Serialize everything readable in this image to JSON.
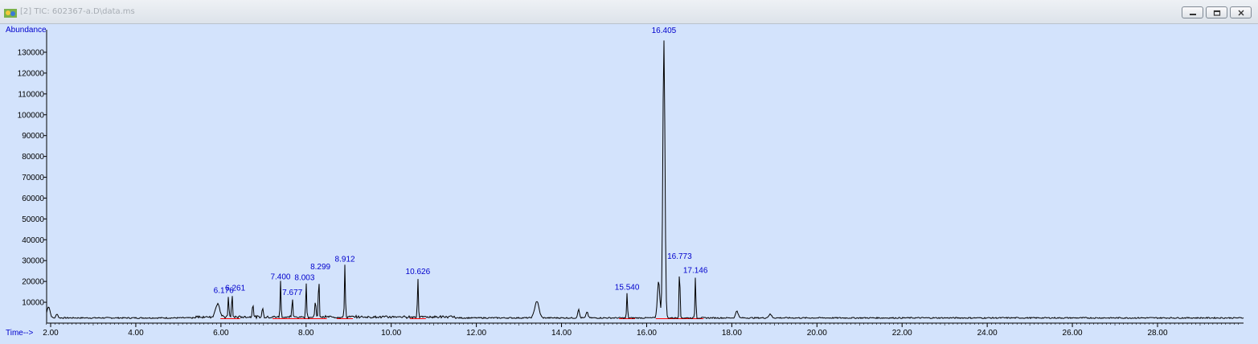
{
  "window": {
    "title": "[2] TIC: 602367-a.D\\data.ms",
    "controls": [
      "minimize",
      "restore",
      "close"
    ]
  },
  "chart_data": {
    "type": "line",
    "ylabel": "Abundance",
    "xlabel": "Time-->",
    "xlim": [
      1.9,
      30.0
    ],
    "ylim": [
      0,
      140000
    ],
    "x_ticks": [
      "2.00",
      "4.00",
      "6.00",
      "8.00",
      "10.00",
      "12.00",
      "14.00",
      "16.00",
      "18.00",
      "20.00",
      "22.00",
      "24.00",
      "26.00",
      "28.00"
    ],
    "y_ticks": [
      "10000",
      "20000",
      "30000",
      "40000",
      "50000",
      "60000",
      "70000",
      "80000",
      "90000",
      "100000",
      "110000",
      "120000",
      "130000"
    ],
    "baseline": 2500,
    "labeled_peaks": [
      {
        "label": "6.176",
        "x": 6.176,
        "y": 13000
      },
      {
        "label": "6.261",
        "x": 6.261,
        "y": 14000
      },
      {
        "label": "7.400",
        "x": 7.4,
        "y": 19500
      },
      {
        "label": "7.677",
        "x": 7.677,
        "y": 12000
      },
      {
        "label": "8.003",
        "x": 8.003,
        "y": 19000
      },
      {
        "label": "8.299",
        "x": 8.299,
        "y": 22000
      },
      {
        "label": "8.912",
        "x": 8.912,
        "y": 28000
      },
      {
        "label": "10.626",
        "x": 10.626,
        "y": 22000
      },
      {
        "label": "15.540",
        "x": 15.54,
        "y": 14500
      },
      {
        "label": "16.405",
        "x": 16.405,
        "y": 136000
      },
      {
        "label": "16.773",
        "x": 16.773,
        "y": 28500
      },
      {
        "label": "17.146",
        "x": 17.146,
        "y": 22500
      }
    ],
    "minor_peaks": [
      {
        "x": 1.95,
        "y": 8000,
        "w": 0.05
      },
      {
        "x": 2.15,
        "y": 4500,
        "w": 0.03
      },
      {
        "x": 5.9,
        "y": 7000,
        "w": 0.06
      },
      {
        "x": 5.95,
        "y": 6000,
        "w": 0.05
      },
      {
        "x": 6.75,
        "y": 9000,
        "w": 0.02
      },
      {
        "x": 6.98,
        "y": 7000,
        "w": 0.02
      },
      {
        "x": 8.22,
        "y": 10000,
        "w": 0.02
      },
      {
        "x": 13.42,
        "y": 10500,
        "w": 0.07
      },
      {
        "x": 14.4,
        "y": 6500,
        "w": 0.03
      },
      {
        "x": 14.6,
        "y": 5500,
        "w": 0.03
      },
      {
        "x": 16.28,
        "y": 20000,
        "w": 0.04
      },
      {
        "x": 18.12,
        "y": 6000,
        "w": 0.04
      },
      {
        "x": 18.9,
        "y": 4200,
        "w": 0.05
      }
    ],
    "grid": false,
    "colors": {
      "plot_bg": "#d3e3fc",
      "trace": "#000000",
      "labels": "#0000cc",
      "integration": "#ff0000"
    }
  }
}
